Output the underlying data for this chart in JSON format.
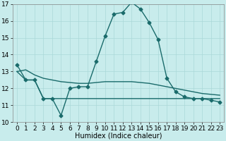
{
  "xlabel": "Humidex (Indice chaleur)",
  "ylabel": "",
  "xlim": [
    -0.5,
    23.5
  ],
  "ylim": [
    10,
    17
  ],
  "yticks": [
    10,
    11,
    12,
    13,
    14,
    15,
    16,
    17
  ],
  "xticks": [
    0,
    1,
    2,
    3,
    4,
    5,
    6,
    7,
    8,
    9,
    10,
    11,
    12,
    13,
    14,
    15,
    16,
    17,
    18,
    19,
    20,
    21,
    22,
    23
  ],
  "background_color": "#c8ecec",
  "grid_color": "#aad8d8",
  "line_color": "#1a6b6b",
  "line1_x": [
    0,
    1,
    2,
    3,
    4,
    5,
    6,
    7,
    8,
    9,
    10,
    11,
    12,
    13,
    14,
    15,
    16,
    17,
    18,
    19,
    20,
    21,
    22,
    23
  ],
  "line1_y": [
    13.4,
    12.5,
    12.5,
    11.4,
    11.4,
    10.4,
    12.0,
    12.1,
    12.1,
    13.6,
    15.1,
    16.4,
    16.5,
    17.1,
    16.7,
    15.9,
    14.9,
    12.6,
    11.8,
    11.5,
    11.4,
    11.4,
    11.3,
    11.2
  ],
  "line2_x": [
    0,
    1,
    2,
    3,
    4,
    5,
    6,
    7,
    8,
    9,
    10,
    11,
    12,
    13,
    14,
    15,
    16,
    17,
    18,
    19,
    20,
    21,
    22,
    23
  ],
  "line2_y": [
    13.0,
    13.1,
    12.8,
    12.6,
    12.5,
    12.4,
    12.35,
    12.3,
    12.3,
    12.35,
    12.4,
    12.4,
    12.4,
    12.4,
    12.35,
    12.3,
    12.2,
    12.1,
    12.0,
    11.9,
    11.8,
    11.7,
    11.65,
    11.6
  ],
  "line3_x": [
    0,
    1,
    2,
    3,
    4,
    5,
    6,
    7,
    8,
    9,
    10,
    11,
    12,
    13,
    14,
    15,
    16,
    17,
    18,
    19,
    20,
    21,
    22,
    23
  ],
  "line3_y": [
    13.0,
    12.5,
    12.5,
    11.4,
    11.4,
    11.4,
    11.4,
    11.4,
    11.4,
    11.4,
    11.4,
    11.4,
    11.4,
    11.4,
    11.4,
    11.4,
    11.4,
    11.4,
    11.4,
    11.4,
    11.4,
    11.4,
    11.4,
    11.4
  ],
  "marker": "D",
  "marker_size": 2.5,
  "linewidth": 1.0,
  "xlabel_fontsize": 7,
  "tick_fontsize": 6.5
}
